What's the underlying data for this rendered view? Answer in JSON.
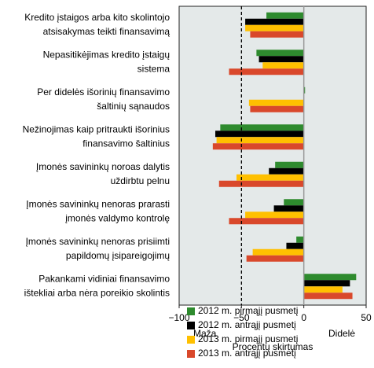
{
  "chart_data": {
    "type": "hbar",
    "categories": [
      [
        "Kredito įstaigos arba kito skolintojo",
        "atsisakymas teikti finansavimą"
      ],
      [
        "Nepasitikėjimas kredito įstaigų",
        "sistema"
      ],
      [
        "Per didelės išorinių finansavimo",
        "šaltinių sąnaudos"
      ],
      [
        "Nežinojimas kaip pritraukti išorinius",
        "finansavimo šaltinius"
      ],
      [
        "Įmonės savininkų noroas dalytis",
        "uždirbtu pelnu"
      ],
      [
        "Įmonės savininkų nenoras prarasti",
        "įmonės valdymo kontrolę"
      ],
      [
        "Įmonės savininkų nenoras prisiimti",
        "papildomų įsipareigojimų"
      ],
      [
        "Pakankami vidiniai finansavimo",
        "ištekliai arba nėra poreikio skolintis"
      ]
    ],
    "series": [
      {
        "name": "2012 m. pirmąjį pusmetį",
        "color": "#2e8b2e",
        "values": [
          -30,
          -38,
          1,
          -67,
          -23,
          -16,
          -6,
          42
        ]
      },
      {
        "name": "2012 m. antrąjį pusmetį",
        "color": "#000000",
        "values": [
          -47,
          -36,
          0,
          -71,
          -28,
          -24,
          -14,
          37
        ]
      },
      {
        "name": "2013 m. pirmąjį pusmetį",
        "color": "#ffc000",
        "values": [
          -47,
          -33,
          -44,
          -70,
          -54,
          -47,
          -41,
          31
        ]
      },
      {
        "name": "2013 m. antrąjį pusmetį",
        "color": "#d9482b",
        "values": [
          -43,
          -60,
          -43,
          -73,
          -68,
          -60,
          -46,
          39
        ]
      }
    ],
    "xlim": [
      -100,
      50
    ],
    "xticks": [
      {
        "value": -100,
        "label": "−100"
      },
      {
        "value": -50,
        "label": "−50"
      },
      0,
      50
    ],
    "reference_line": -50,
    "annotations": [
      "Maža",
      "Didelė"
    ],
    "x_label": "Procentų skirtumas"
  }
}
